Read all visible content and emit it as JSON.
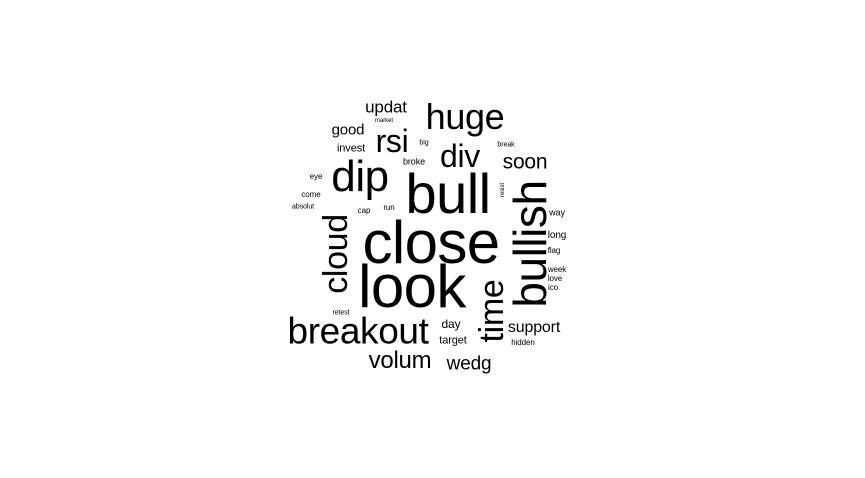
{
  "background_color": "#ffffff",
  "text_color": "#000000",
  "words": [
    {
      "text": "close"
    },
    {
      "text": "look"
    },
    {
      "text": "bull"
    },
    {
      "text": "bullish"
    },
    {
      "text": "dip"
    },
    {
      "text": "breakout"
    },
    {
      "text": "huge"
    },
    {
      "text": "cloud"
    },
    {
      "text": "time"
    },
    {
      "text": "rsi"
    },
    {
      "text": "div"
    },
    {
      "text": "volum"
    },
    {
      "text": "soon"
    },
    {
      "text": "wedg"
    },
    {
      "text": "support"
    },
    {
      "text": "updat"
    },
    {
      "text": "good"
    },
    {
      "text": "invest"
    },
    {
      "text": "day"
    },
    {
      "text": "target"
    },
    {
      "text": "long"
    },
    {
      "text": "broke"
    },
    {
      "text": "eye"
    },
    {
      "text": "come"
    },
    {
      "text": "way"
    },
    {
      "text": "cap"
    },
    {
      "text": "run"
    },
    {
      "text": "flag"
    },
    {
      "text": "week"
    },
    {
      "text": "love"
    },
    {
      "text": "ico"
    },
    {
      "text": "retest"
    },
    {
      "text": "hidden"
    },
    {
      "text": "absolut"
    },
    {
      "text": "big"
    },
    {
      "text": "break"
    },
    {
      "text": "market"
    },
    {
      "text": "resist"
    }
  ]
}
